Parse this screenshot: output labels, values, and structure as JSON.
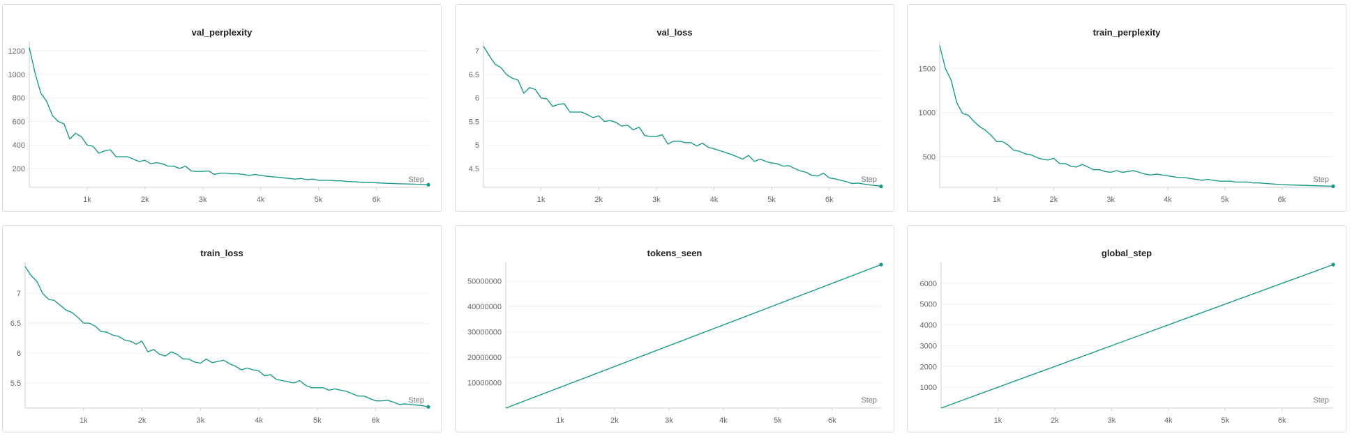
{
  "theme": {
    "line_color": "#1a9a8a",
    "grid_color": "#efefef",
    "axis_color": "#cfcfcf"
  },
  "chart_data": [
    {
      "title": "val_perplexity",
      "type": "line",
      "xlabel": "Step",
      "xlim": [
        0,
        6900
      ],
      "ylim": [
        40,
        1260
      ],
      "x_ticks": [
        1000,
        2000,
        3000,
        4000,
        5000,
        6000
      ],
      "x_tick_labels": [
        "1k",
        "2k",
        "3k",
        "4k",
        "5k",
        "6k"
      ],
      "y_ticks": [
        200,
        400,
        600,
        800,
        1000,
        1200
      ],
      "y_tick_labels": [
        "200",
        "400",
        "600",
        "800",
        "1000",
        "1200"
      ],
      "series": [
        {
          "x": [
            0,
            100,
            200,
            300,
            400,
            500,
            600,
            700,
            800,
            900,
            1000,
            1100,
            1200,
            1300,
            1400,
            1500,
            1600,
            1700,
            1800,
            1900,
            2000,
            2100,
            2200,
            2300,
            2400,
            2500,
            2600,
            2700,
            2800,
            2900,
            3000,
            3100,
            3200,
            3300,
            3400,
            3500,
            3600,
            3700,
            3800,
            3900,
            4000,
            4100,
            4200,
            4300,
            4400,
            4500,
            4600,
            4700,
            4800,
            4900,
            5000,
            5100,
            5200,
            5300,
            5400,
            5500,
            5600,
            5700,
            5800,
            5900,
            6000,
            6100,
            6200,
            6300,
            6400,
            6500,
            6600,
            6700,
            6800,
            6900
          ],
          "y": [
            1230,
            1010,
            840,
            770,
            650,
            600,
            580,
            450,
            500,
            470,
            400,
            390,
            330,
            350,
            360,
            300,
            300,
            300,
            280,
            260,
            270,
            240,
            250,
            240,
            220,
            220,
            200,
            220,
            180,
            175,
            175,
            180,
            150,
            160,
            160,
            155,
            155,
            150,
            140,
            150,
            140,
            135,
            130,
            125,
            120,
            115,
            110,
            115,
            105,
            110,
            100,
            100,
            100,
            95,
            95,
            90,
            88,
            85,
            80,
            82,
            78,
            76,
            74,
            72,
            70,
            69,
            68,
            66,
            65,
            62
          ]
        }
      ]
    },
    {
      "title": "val_loss",
      "type": "line",
      "xlabel": "Step",
      "xlim": [
        0,
        6900
      ],
      "ylim": [
        4.1,
        7.15
      ],
      "x_ticks": [
        1000,
        2000,
        3000,
        4000,
        5000,
        6000
      ],
      "x_tick_labels": [
        "1k",
        "2k",
        "3k",
        "4k",
        "5k",
        "6k"
      ],
      "y_ticks": [
        4.5,
        5,
        5.5,
        6,
        6.5,
        7
      ],
      "y_tick_labels": [
        "4.5",
        "5",
        "5.5",
        "6",
        "6.5",
        "7"
      ],
      "series": [
        {
          "x": [
            0,
            100,
            200,
            300,
            400,
            500,
            600,
            700,
            800,
            900,
            1000,
            1100,
            1200,
            1300,
            1400,
            1500,
            1600,
            1700,
            1800,
            1900,
            2000,
            2100,
            2200,
            2300,
            2400,
            2500,
            2600,
            2700,
            2800,
            2900,
            3000,
            3100,
            3200,
            3300,
            3400,
            3500,
            3600,
            3700,
            3800,
            3900,
            4000,
            4100,
            4200,
            4300,
            4400,
            4500,
            4600,
            4700,
            4800,
            4900,
            5000,
            5100,
            5200,
            5300,
            5400,
            5500,
            5600,
            5700,
            5800,
            5900,
            6000,
            6100,
            6200,
            6300,
            6400,
            6500,
            6600,
            6700,
            6800,
            6900
          ],
          "y": [
            7.1,
            6.9,
            6.72,
            6.65,
            6.5,
            6.42,
            6.38,
            6.1,
            6.22,
            6.18,
            6.0,
            5.98,
            5.82,
            5.86,
            5.88,
            5.7,
            5.7,
            5.7,
            5.65,
            5.58,
            5.62,
            5.5,
            5.52,
            5.48,
            5.4,
            5.42,
            5.32,
            5.38,
            5.2,
            5.18,
            5.18,
            5.22,
            5.02,
            5.08,
            5.08,
            5.05,
            5.05,
            4.98,
            5.04,
            4.95,
            4.92,
            4.88,
            4.84,
            4.8,
            4.75,
            4.7,
            4.78,
            4.65,
            4.7,
            4.65,
            4.62,
            4.6,
            4.55,
            4.56,
            4.5,
            4.45,
            4.42,
            4.35,
            4.34,
            4.4,
            4.3,
            4.28,
            4.25,
            4.22,
            4.18,
            4.19,
            4.17,
            4.15,
            4.14,
            4.12
          ]
        }
      ]
    },
    {
      "title": "train_perplexity",
      "type": "line",
      "xlabel": "Step",
      "xlim": [
        0,
        6900
      ],
      "ylim": [
        150,
        1780
      ],
      "x_ticks": [
        1000,
        2000,
        3000,
        4000,
        5000,
        6000
      ],
      "x_tick_labels": [
        "1k",
        "2k",
        "3k",
        "4k",
        "5k",
        "6k"
      ],
      "y_ticks": [
        500,
        1000,
        1500
      ],
      "y_tick_labels": [
        "500",
        "1000",
        "1500"
      ],
      "series": [
        {
          "x": [
            0,
            100,
            200,
            300,
            400,
            500,
            600,
            700,
            800,
            900,
            1000,
            1100,
            1200,
            1300,
            1400,
            1500,
            1600,
            1700,
            1800,
            1900,
            2000,
            2100,
            2200,
            2300,
            2400,
            2500,
            2600,
            2700,
            2800,
            2900,
            3000,
            3100,
            3200,
            3300,
            3400,
            3500,
            3600,
            3700,
            3800,
            3900,
            4000,
            4100,
            4200,
            4300,
            4400,
            4500,
            4600,
            4700,
            4800,
            4900,
            5000,
            5100,
            5200,
            5300,
            5400,
            5500,
            5600,
            5700,
            5800,
            5900,
            6000,
            6100,
            6200,
            6300,
            6400,
            6500,
            6600,
            6700,
            6800,
            6900
          ],
          "y": [
            1760,
            1500,
            1370,
            1110,
            990,
            970,
            900,
            840,
            800,
            740,
            670,
            670,
            630,
            570,
            560,
            530,
            520,
            490,
            470,
            460,
            480,
            420,
            420,
            390,
            380,
            410,
            380,
            350,
            350,
            330,
            320,
            340,
            320,
            330,
            340,
            320,
            300,
            290,
            300,
            290,
            280,
            270,
            260,
            260,
            250,
            240,
            230,
            240,
            230,
            220,
            220,
            220,
            210,
            210,
            210,
            200,
            200,
            195,
            190,
            185,
            180,
            178,
            176,
            174,
            172,
            170,
            168,
            166,
            164,
            162
          ]
        }
      ]
    },
    {
      "title": "train_loss",
      "type": "line",
      "xlabel": "Step",
      "xlim": [
        0,
        6900
      ],
      "ylim": [
        5.08,
        7.48
      ],
      "x_ticks": [
        1000,
        2000,
        3000,
        4000,
        5000,
        6000
      ],
      "x_tick_labels": [
        "1k",
        "2k",
        "3k",
        "4k",
        "5k",
        "6k"
      ],
      "y_ticks": [
        5.5,
        6,
        6.5,
        7
      ],
      "y_tick_labels": [
        "5.5",
        "6",
        "6.5",
        "7"
      ],
      "series": [
        {
          "x": [
            0,
            100,
            200,
            300,
            400,
            500,
            600,
            700,
            800,
            900,
            1000,
            1100,
            1200,
            1300,
            1400,
            1500,
            1600,
            1700,
            1800,
            1900,
            2000,
            2100,
            2200,
            2300,
            2400,
            2500,
            2600,
            2700,
            2800,
            2900,
            3000,
            3100,
            3200,
            3300,
            3400,
            3500,
            3600,
            3700,
            3800,
            3900,
            4000,
            4100,
            4200,
            4300,
            4400,
            4500,
            4600,
            4700,
            4800,
            4900,
            5000,
            5100,
            5200,
            5300,
            5400,
            5500,
            5600,
            5700,
            5800,
            5900,
            6000,
            6100,
            6200,
            6300,
            6400,
            6500,
            6600,
            6700,
            6800,
            6900
          ],
          "y": [
            7.45,
            7.3,
            7.2,
            7.0,
            6.9,
            6.88,
            6.8,
            6.72,
            6.68,
            6.6,
            6.5,
            6.5,
            6.45,
            6.36,
            6.35,
            6.3,
            6.28,
            6.22,
            6.2,
            6.15,
            6.2,
            6.02,
            6.06,
            5.98,
            5.95,
            6.02,
            5.98,
            5.9,
            5.9,
            5.85,
            5.83,
            5.9,
            5.84,
            5.86,
            5.88,
            5.82,
            5.78,
            5.72,
            5.75,
            5.72,
            5.7,
            5.62,
            5.64,
            5.56,
            5.54,
            5.52,
            5.5,
            5.54,
            5.46,
            5.42,
            5.42,
            5.42,
            5.38,
            5.4,
            5.38,
            5.36,
            5.32,
            5.28,
            5.28,
            5.24,
            5.2,
            5.2,
            5.21,
            5.18,
            5.14,
            5.15,
            5.14,
            5.13,
            5.12,
            5.1
          ]
        }
      ]
    },
    {
      "title": "tokens_seen",
      "type": "line",
      "xlabel": "Step",
      "xlim": [
        0,
        6900
      ],
      "ylim": [
        0,
        56500000
      ],
      "x_ticks": [
        1000,
        2000,
        3000,
        4000,
        5000,
        6000
      ],
      "x_tick_labels": [
        "1k",
        "2k",
        "3k",
        "4k",
        "5k",
        "6k"
      ],
      "y_ticks": [
        10000000,
        20000000,
        30000000,
        40000000,
        50000000
      ],
      "y_tick_labels": [
        "10000000",
        "20000000",
        "30000000",
        "40000000",
        "50000000"
      ],
      "series": [
        {
          "x": [
            0,
            6900
          ],
          "y": [
            0,
            56500000
          ]
        }
      ]
    },
    {
      "title": "global_step",
      "type": "line",
      "xlabel": "Step",
      "xlim": [
        0,
        6900
      ],
      "ylim": [
        0,
        6900
      ],
      "x_ticks": [
        1000,
        2000,
        3000,
        4000,
        5000,
        6000
      ],
      "x_tick_labels": [
        "1k",
        "2k",
        "3k",
        "4k",
        "5k",
        "6k"
      ],
      "y_ticks": [
        1000,
        2000,
        3000,
        4000,
        5000,
        6000
      ],
      "y_tick_labels": [
        "1000",
        "2000",
        "3000",
        "4000",
        "5000",
        "6000"
      ],
      "series": [
        {
          "x": [
            0,
            6900
          ],
          "y": [
            0,
            6900
          ]
        }
      ]
    }
  ]
}
